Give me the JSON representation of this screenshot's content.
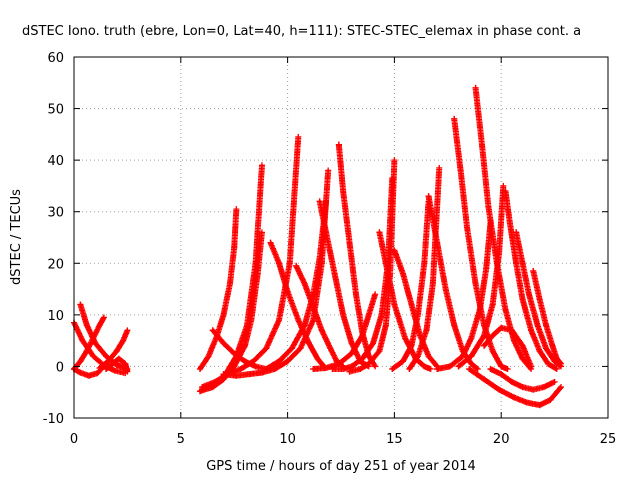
{
  "chart_data": {
    "type": "scatter",
    "title": "dSTEC Iono. truth (ebre, Lon=0, Lat=40, h=111): STEC-STEC_elemax in phase cont. a",
    "xlabel": "GPS time / hours of day 251 of year 2014",
    "ylabel": "dSTEC  / TECUs",
    "xlim": [
      0,
      25
    ],
    "ylim": [
      -10,
      60
    ],
    "xticks": [
      0,
      5,
      10,
      15,
      20,
      25
    ],
    "yticks": [
      -10,
      0,
      10,
      20,
      30,
      40,
      50,
      60
    ],
    "grid": true,
    "marker": "+",
    "color": "#ff0000",
    "series": [
      {
        "x": [
          0.0,
          0.3,
          0.7,
          1.1,
          1.5
        ],
        "y": [
          -0.5,
          -1.2,
          -1.8,
          -1.3,
          0.5
        ]
      },
      {
        "x": [
          0.0,
          0.4,
          0.9,
          1.4,
          1.9,
          2.4
        ],
        "y": [
          8.5,
          5.0,
          2.0,
          0.2,
          -0.8,
          -1.3
        ]
      },
      {
        "x": [
          0.3,
          0.6,
          1.0,
          1.5,
          2.0,
          2.5
        ],
        "y": [
          12.0,
          8.0,
          4.5,
          2.0,
          0.3,
          -0.5
        ]
      },
      {
        "x": [
          0.0,
          0.3,
          0.6,
          0.9,
          1.2,
          1.4
        ],
        "y": [
          -0.5,
          1.0,
          3.0,
          5.5,
          8.0,
          9.5
        ]
      },
      {
        "x": [
          1.2,
          1.6,
          2.0,
          2.3,
          2.5
        ],
        "y": [
          -0.3,
          1.0,
          3.0,
          5.0,
          7.0
        ]
      },
      {
        "x": [
          1.5,
          1.8,
          2.1,
          2.4,
          2.5
        ],
        "y": [
          -0.5,
          0.5,
          1.5,
          0.5,
          -1.0
        ]
      },
      {
        "x": [
          5.9,
          6.3,
          6.7,
          7.0,
          7.3,
          7.5,
          7.6
        ],
        "y": [
          -0.5,
          2.0,
          6.0,
          10.0,
          16.0,
          23.0,
          30.5
        ]
      },
      {
        "x": [
          5.9,
          6.5,
          7.0,
          7.5,
          8.0,
          8.3,
          8.6,
          8.8
        ],
        "y": [
          -4.8,
          -4.0,
          -2.5,
          0.0,
          4.0,
          9.0,
          18.0,
          26.0
        ]
      },
      {
        "x": [
          6.0,
          6.6,
          7.1,
          7.6,
          8.1,
          8.5,
          8.8
        ],
        "y": [
          -4.5,
          -3.5,
          -1.5,
          2.0,
          8.0,
          20.0,
          39.0
        ]
      },
      {
        "x": [
          6.0,
          6.6,
          7.2,
          7.8,
          8.4,
          9.0,
          9.6,
          10.1,
          10.5
        ],
        "y": [
          -4.0,
          -3.0,
          -1.5,
          -0.5,
          1.0,
          3.5,
          9.0,
          20.0,
          44.5
        ]
      },
      {
        "x": [
          7.0,
          7.6,
          8.2,
          8.8,
          9.4,
          10.0,
          10.6,
          11.2,
          11.6,
          11.9
        ],
        "y": [
          -1.5,
          -1.8,
          -1.5,
          -1.2,
          -0.5,
          1.0,
          3.5,
          9.0,
          20.0,
          38.0
        ]
      },
      {
        "x": [
          6.5,
          7.0,
          7.5,
          8.0,
          8.5,
          9.0
        ],
        "y": [
          7.0,
          4.5,
          2.5,
          1.0,
          0.0,
          -0.5
        ]
      },
      {
        "x": [
          9.2,
          9.6,
          10.0,
          10.5,
          11.0,
          11.4,
          11.7
        ],
        "y": [
          24.0,
          20.0,
          14.5,
          9.0,
          4.5,
          1.5,
          0.0
        ]
      },
      {
        "x": [
          10.4,
          10.8,
          11.2,
          11.6,
          12.0,
          12.3,
          12.6
        ],
        "y": [
          19.5,
          16.0,
          11.5,
          7.0,
          3.5,
          1.0,
          0.0
        ]
      },
      {
        "x": [
          9.0,
          9.6,
          10.2,
          10.8,
          11.2,
          11.5,
          11.8
        ],
        "y": [
          -0.5,
          1.0,
          3.5,
          8.0,
          14.0,
          21.0,
          32.0
        ]
      },
      {
        "x": [
          11.5,
          11.8,
          12.2,
          12.6,
          13.0,
          13.4,
          13.8
        ],
        "y": [
          32.0,
          26.0,
          18.0,
          10.0,
          4.5,
          1.0,
          0.0
        ]
      },
      {
        "x": [
          12.4,
          12.6,
          12.9,
          13.2,
          13.5,
          13.8,
          14.1
        ],
        "y": [
          43.0,
          34.0,
          24.0,
          14.0,
          6.5,
          2.0,
          0.0
        ]
      },
      {
        "x": [
          11.2,
          11.8,
          12.4,
          13.0,
          13.5,
          13.8,
          14.1
        ],
        "y": [
          -0.5,
          -0.3,
          0.5,
          2.5,
          6.0,
          10.0,
          14.0
        ]
      },
      {
        "x": [
          12.1,
          12.6,
          13.0,
          13.5,
          14.0,
          14.4,
          14.7,
          14.9
        ],
        "y": [
          -0.5,
          -0.5,
          0.0,
          1.5,
          4.5,
          10.0,
          20.0,
          36.5
        ]
      },
      {
        "x": [
          12.9,
          13.4,
          13.8,
          14.3,
          14.6,
          14.8,
          15.0
        ],
        "y": [
          -1.0,
          -0.5,
          0.5,
          3.0,
          8.0,
          18.0,
          40.0
        ]
      },
      {
        "x": [
          14.3,
          14.6,
          15.0,
          15.5,
          16.0,
          16.4,
          16.7
        ],
        "y": [
          26.0,
          20.0,
          12.0,
          5.5,
          1.5,
          0.0,
          -0.5
        ]
      },
      {
        "x": [
          15.0,
          15.4,
          15.8,
          16.2,
          16.6,
          17.0
        ],
        "y": [
          22.5,
          18.0,
          12.0,
          6.0,
          2.0,
          0.0
        ]
      },
      {
        "x": [
          14.9,
          15.4,
          15.8,
          16.1,
          16.4,
          16.6
        ],
        "y": [
          -0.5,
          1.0,
          4.0,
          10.0,
          20.0,
          32.0
        ]
      },
      {
        "x": [
          15.7,
          16.1,
          16.5,
          16.8,
          17.1
        ],
        "y": [
          -0.5,
          2.0,
          7.0,
          16.0,
          38.5
        ]
      },
      {
        "x": [
          16.6,
          17.0,
          17.4,
          17.8,
          18.2,
          18.6,
          18.9
        ],
        "y": [
          33.0,
          24.0,
          15.0,
          8.0,
          3.0,
          0.5,
          -0.5
        ]
      },
      {
        "x": [
          17.8,
          18.1,
          18.4,
          18.8,
          19.2,
          19.6,
          20.0,
          20.3
        ],
        "y": [
          48.0,
          38.0,
          27.0,
          16.0,
          8.0,
          3.0,
          0.0,
          -0.5
        ]
      },
      {
        "x": [
          17.0,
          17.6,
          18.2,
          18.6,
          19.0,
          19.3,
          19.5
        ],
        "y": [
          -0.5,
          0.0,
          2.0,
          5.5,
          11.0,
          19.0,
          28.0
        ]
      },
      {
        "x": [
          18.8,
          19.1,
          19.4,
          19.8,
          20.2,
          20.6,
          21.0,
          21.4
        ],
        "y": [
          54.0,
          43.0,
          31.0,
          20.0,
          11.0,
          5.0,
          1.5,
          -0.5
        ]
      },
      {
        "x": [
          18.0,
          18.6,
          19.2,
          19.6,
          19.9,
          20.1
        ],
        "y": [
          0.0,
          2.0,
          6.0,
          12.0,
          22.0,
          35.0
        ]
      },
      {
        "x": [
          19.2,
          19.6,
          20.0,
          20.5,
          21.0,
          21.4
        ],
        "y": [
          4.0,
          6.0,
          7.5,
          7.0,
          4.0,
          0.0
        ]
      },
      {
        "x": [
          18.5,
          19.2,
          19.9,
          20.6,
          21.2,
          21.8,
          22.3,
          22.8
        ],
        "y": [
          -0.5,
          -2.5,
          -4.5,
          -6.0,
          -7.0,
          -7.5,
          -6.5,
          -4.0
        ]
      },
      {
        "x": [
          20.2,
          20.4,
          20.7,
          21.0,
          21.4,
          21.8,
          22.2,
          22.6
        ],
        "y": [
          34.0,
          28.0,
          20.0,
          13.0,
          7.0,
          3.0,
          0.5,
          -0.5
        ]
      },
      {
        "x": [
          20.7,
          21.0,
          21.3,
          21.7,
          22.1,
          22.5,
          22.8
        ],
        "y": [
          26.0,
          20.0,
          14.0,
          8.0,
          3.5,
          1.0,
          0.0
        ]
      },
      {
        "x": [
          21.5,
          21.8,
          22.1,
          22.4,
          22.6,
          22.8
        ],
        "y": [
          18.5,
          13.0,
          8.0,
          4.0,
          1.5,
          0.5
        ]
      },
      {
        "x": [
          19.5,
          20.0,
          20.5,
          21.0,
          21.5,
          22.0,
          22.5
        ],
        "y": [
          -0.5,
          -1.5,
          -3.0,
          -4.0,
          -4.5,
          -4.0,
          -3.0
        ]
      }
    ]
  }
}
